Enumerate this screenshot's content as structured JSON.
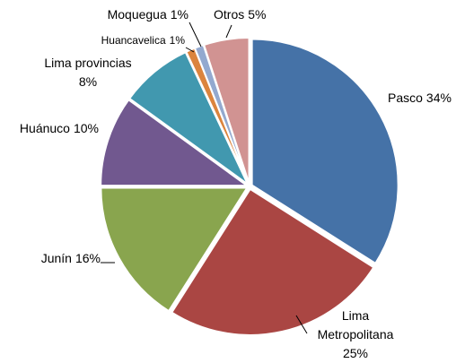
{
  "chart_data": {
    "type": "pie",
    "categories": [
      "Pasco",
      "Lima Metropolitana",
      "Junín",
      "Huánuco",
      "Lima provincias",
      "Huancavelica",
      "Moquegua",
      "Otros"
    ],
    "values": [
      34,
      25,
      16,
      10,
      8,
      1,
      1,
      5
    ],
    "value_labels": [
      "34%",
      "25%",
      "16%",
      "10%",
      "8%",
      "1%",
      "1%",
      "5%"
    ],
    "colors": [
      "#4572a7",
      "#aa4643",
      "#89a54e",
      "#71588f",
      "#4198af",
      "#db843d",
      "#93a9cf",
      "#d19392"
    ]
  }
}
